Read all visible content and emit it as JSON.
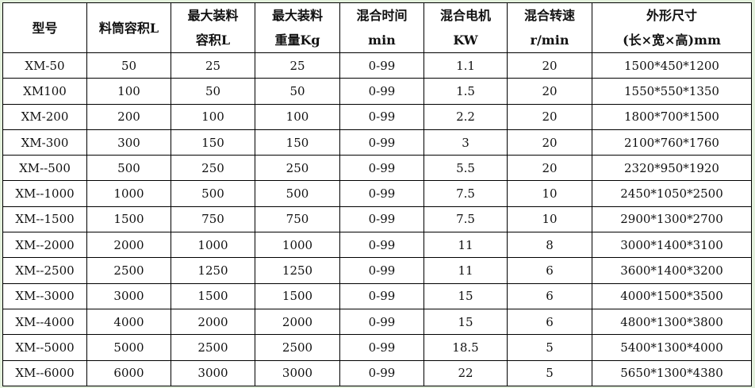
{
  "headers": [
    {
      "l1": "型号",
      "l2": ""
    },
    {
      "l1": "料筒容积L",
      "l2": ""
    },
    {
      "l1": "最大装料",
      "l2": "容积L"
    },
    {
      "l1": "最大装料",
      "l2": "重量Kg"
    },
    {
      "l1": "混合时间",
      "l2": "min"
    },
    {
      "l1": "混合电机",
      "l2": "KW"
    },
    {
      "l1": "混合转速",
      "l2": "r/min"
    },
    {
      "l1": "外形尺寸",
      "l2": "(长×宽×高)mm"
    }
  ],
  "rows": [
    [
      "XM-50",
      "50",
      "25",
      "25",
      "0-99",
      "1.1",
      "20",
      "1500*450*1200"
    ],
    [
      "XM100",
      "100",
      "50",
      "50",
      "0-99",
      "1.5",
      "20",
      "1550*550*1350"
    ],
    [
      "XM-200",
      "200",
      "100",
      "100",
      "0-99",
      "2.2",
      "20",
      "1800*700*1500"
    ],
    [
      "XM-300",
      "300",
      "150",
      "150",
      "0-99",
      "3",
      "20",
      "2100*760*1760"
    ],
    [
      "XM--500",
      "500",
      "250",
      "250",
      "0-99",
      "5.5",
      "20",
      "2320*950*1920"
    ],
    [
      "XM--1000",
      "1000",
      "500",
      "500",
      "0-99",
      "7.5",
      "10",
      "2450*1050*2500"
    ],
    [
      "XM--1500",
      "1500",
      "750",
      "750",
      "0-99",
      "7.5",
      "10",
      "2900*1300*2700"
    ],
    [
      "XM--2000",
      "2000",
      "1000",
      "1000",
      "0-99",
      "11",
      "8",
      "3000*1400*3100"
    ],
    [
      "XM--2500",
      "2500",
      "1250",
      "1250",
      "0-99",
      "11",
      "6",
      "3600*1400*3200"
    ],
    [
      "XM--3000",
      "3000",
      "1500",
      "1500",
      "0-99",
      "15",
      "6",
      "4000*1500*3500"
    ],
    [
      "XM--4000",
      "4000",
      "2000",
      "2000",
      "0-99",
      "15",
      "6",
      "4800*1300*3800"
    ],
    [
      "XM--5000",
      "5000",
      "2500",
      "2500",
      "0-99",
      "18.5",
      "5",
      "5400*1300*4000"
    ],
    [
      "XM--6000",
      "6000",
      "3000",
      "3000",
      "0-99",
      "22",
      "5",
      "5650*1300*4380"
    ]
  ]
}
